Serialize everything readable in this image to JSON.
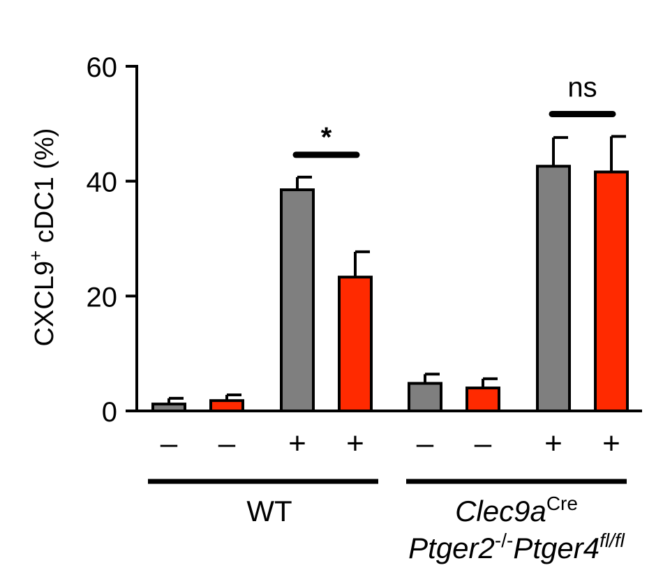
{
  "chart_data": {
    "type": "bar",
    "ylabel": "CXCL9",
    "ylabel_sup": "+",
    "ylabel_rest": " cDC1 (%)",
    "ylim": [
      0,
      60
    ],
    "yticks": [
      "0",
      "20",
      "40",
      "60"
    ],
    "colors": [
      "#7f7f7f",
      "#ff2a00"
    ],
    "bars": [
      {
        "cond": "-",
        "value": 1.2,
        "err": 1.0,
        "color": "#7f7f7f"
      },
      {
        "cond": "-",
        "value": 1.8,
        "err": 1.0,
        "color": "#ff2a00"
      },
      {
        "cond": "+",
        "value": 38.5,
        "err": 2.2,
        "color": "#7f7f7f"
      },
      {
        "cond": "+",
        "value": 23.3,
        "err": 4.4,
        "color": "#ff2a00"
      },
      {
        "cond": "-",
        "value": 4.8,
        "err": 1.6,
        "color": "#7f7f7f"
      },
      {
        "cond": "-",
        "value": 4.0,
        "err": 1.6,
        "color": "#ff2a00"
      },
      {
        "cond": "+",
        "value": 42.6,
        "err": 5.0,
        "color": "#7f7f7f"
      },
      {
        "cond": "+",
        "value": 41.6,
        "err": 6.2,
        "color": "#ff2a00"
      }
    ],
    "groups": [
      {
        "label": "WT"
      },
      {
        "label_line1": "Clec9a",
        "label_line1_sup": "Cre",
        "label_line2a": "Ptger2",
        "label_line2a_sup": "-/-",
        "label_line2b": "Ptger4",
        "label_line2b_sup": "fl/fl"
      }
    ],
    "significance": [
      {
        "label": "*",
        "bars": [
          2,
          3
        ]
      },
      {
        "label": "ns",
        "bars": [
          6,
          7
        ]
      }
    ]
  }
}
